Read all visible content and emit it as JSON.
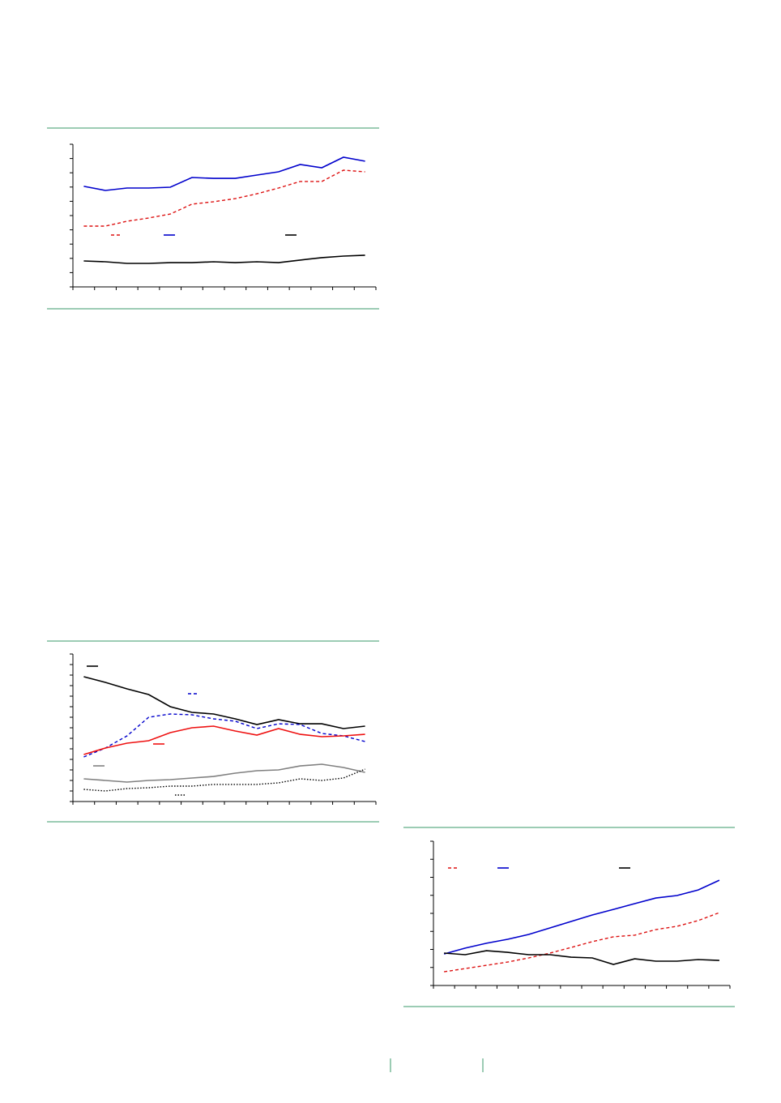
{
  "chart_data": [
    {
      "type": "line",
      "ylim": [
        0,
        10
      ],
      "yticks": [
        0,
        1,
        2,
        3,
        4,
        5,
        6,
        7,
        8,
        9,
        10
      ],
      "series": [
        {
          "color": "#dd1111",
          "dash": "dashed",
          "values": [
            4.26,
            4.26,
            4.6,
            4.83,
            5.11,
            5.8,
            5.97,
            6.19,
            6.53,
            6.93,
            7.39,
            7.39,
            8.18,
            8.07
          ]
        },
        {
          "color": "#0000cc",
          "dash": "solid",
          "values": [
            7.05,
            6.76,
            6.93,
            6.93,
            6.99,
            7.67,
            7.61,
            7.61,
            7.84,
            8.07,
            8.58,
            8.35,
            9.09,
            8.81
          ]
        },
        {
          "color": "#000000",
          "dash": "solid",
          "values": [
            1.82,
            1.76,
            1.65,
            1.65,
            1.7,
            1.7,
            1.76,
            1.7,
            1.76,
            1.7,
            1.88,
            2.05,
            2.16,
            2.22
          ]
        }
      ]
    },
    {
      "type": "line",
      "ylim": [
        0,
        14
      ],
      "yticks": [
        0,
        1,
        2,
        3,
        4,
        5,
        6,
        7,
        8,
        9,
        10,
        11,
        12,
        13,
        14
      ],
      "series": [
        {
          "color": "#000000",
          "dash": "solid",
          "values": [
            11.85,
            11.31,
            10.69,
            10.15,
            9,
            8.46,
            8.31,
            7.85,
            7.31,
            7.77,
            7.38,
            7.38,
            6.92,
            7.15
          ]
        },
        {
          "color": "#0000cc",
          "dash": "dashed",
          "values": [
            4.23,
            5.08,
            6.23,
            8,
            8.31,
            8.23,
            7.85,
            7.62,
            6.92,
            7.38,
            7.31,
            6.46,
            6.23,
            5.69
          ]
        },
        {
          "color": "#ee1111",
          "dash": "solid",
          "values": [
            4.46,
            5.08,
            5.54,
            5.77,
            6.54,
            7,
            7.15,
            6.69,
            6.31,
            6.92,
            6.38,
            6.15,
            6.23,
            6.38
          ]
        },
        {
          "color": "#808080",
          "dash": "solid",
          "values": [
            2.15,
            2,
            1.85,
            2,
            2.08,
            2.23,
            2.38,
            2.69,
            2.92,
            3,
            3.38,
            3.54,
            3.23,
            2.77
          ]
        },
        {
          "color": "#000000",
          "dash": "dotted",
          "values": [
            1.15,
            1,
            1.23,
            1.31,
            1.46,
            1.46,
            1.62,
            1.62,
            1.62,
            1.77,
            2.15,
            2,
            2.23,
            3.08
          ]
        }
      ]
    },
    {
      "type": "line",
      "ylim": [
        0,
        8
      ],
      "yticks": [
        0,
        1,
        2,
        3,
        4,
        5,
        6,
        7,
        8
      ],
      "series": [
        {
          "color": "#dd1111",
          "dash": "dashed",
          "values": [
            0.76,
            0.94,
            1.12,
            1.3,
            1.53,
            1.8,
            2.11,
            2.43,
            2.7,
            2.79,
            3.1,
            3.28,
            3.6,
            4.04
          ]
        },
        {
          "color": "#0000cc",
          "dash": "solid",
          "values": [
            1.75,
            2.07,
            2.34,
            2.56,
            2.83,
            3.19,
            3.55,
            3.91,
            4.22,
            4.54,
            4.85,
            4.99,
            5.3,
            5.84
          ]
        },
        {
          "color": "#000000",
          "dash": "solid",
          "values": [
            1.8,
            1.71,
            1.93,
            1.84,
            1.71,
            1.71,
            1.57,
            1.53,
            1.17,
            1.48,
            1.35,
            1.35,
            1.44,
            1.39
          ]
        }
      ]
    }
  ]
}
